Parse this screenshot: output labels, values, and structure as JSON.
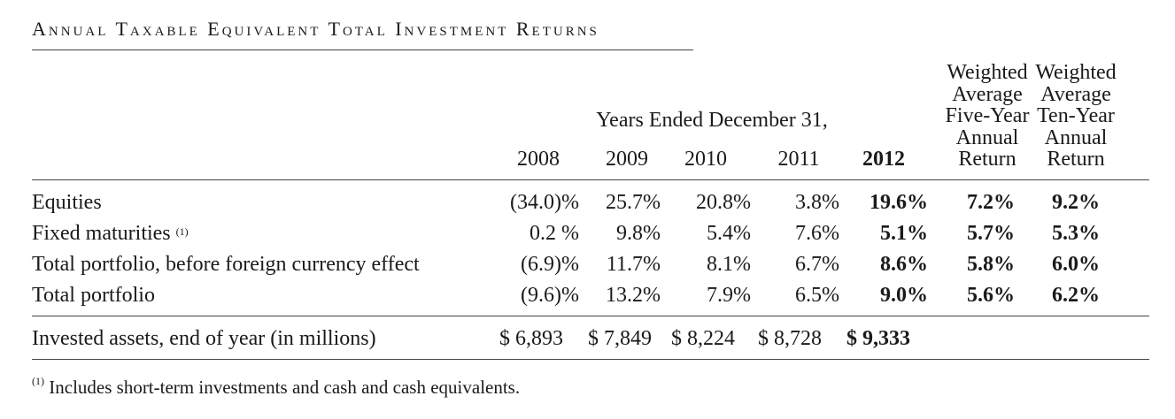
{
  "title": "Annual Taxable Equivalent Total Investment Returns",
  "header": {
    "group_label": "Years Ended December 31,",
    "years": [
      "2008",
      "2009",
      "2010",
      "2011",
      "2012"
    ],
    "five_year": [
      "Weighted",
      "Average",
      "Five-Year",
      "Annual",
      "Return"
    ],
    "ten_year": [
      "Weighted",
      "Average",
      "Ten-Year",
      "Annual",
      "Return"
    ]
  },
  "rows": [
    {
      "label": "Equities",
      "note": "",
      "values": [
        "(34.0)%",
        "25.7%",
        "20.8%",
        "3.8%",
        "19.6%",
        "7.2%",
        "9.2%"
      ]
    },
    {
      "label": "Fixed maturities",
      "note": "(1)",
      "values": [
        "0.2 %",
        "9.8%",
        "5.4%",
        "7.6%",
        "5.1%",
        "5.7%",
        "5.3%"
      ]
    },
    {
      "label": "Total portfolio, before foreign currency effect",
      "note": "",
      "values": [
        "(6.9)%",
        "11.7%",
        "8.1%",
        "6.7%",
        "8.6%",
        "5.8%",
        "6.0%"
      ]
    },
    {
      "label": "Total portfolio",
      "note": "",
      "values": [
        "(9.6)%",
        "13.2%",
        "7.9%",
        "6.5%",
        "9.0%",
        "5.6%",
        "6.2%"
      ]
    }
  ],
  "assets": {
    "label": "Invested assets, end of year (in millions)",
    "values": [
      "$ 6,893",
      "$ 7,849",
      "$ 8,224",
      "$ 8,728",
      "$ 9,333"
    ]
  },
  "footnote": {
    "marker": "(1)",
    "text": "Includes short-term investments and cash and cash equivalents."
  }
}
